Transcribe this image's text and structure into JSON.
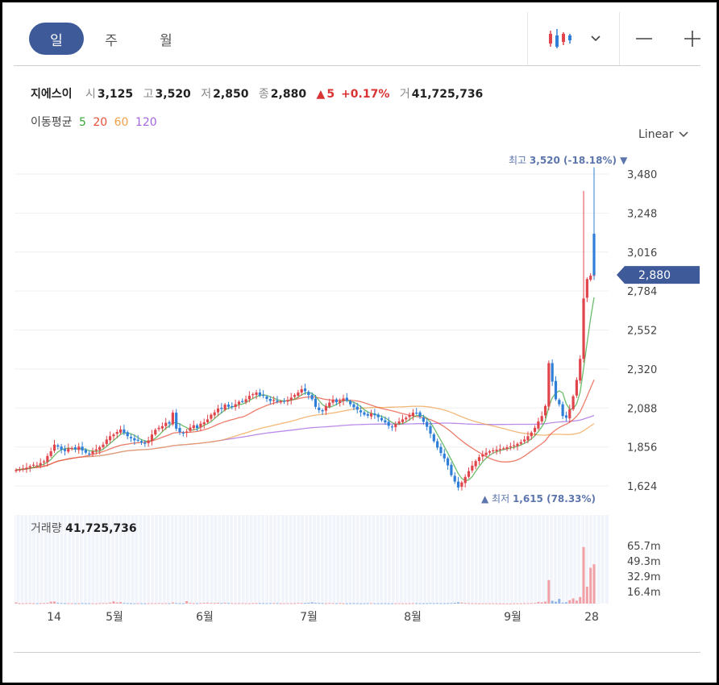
{
  "tabs": [
    {
      "label": "일",
      "active": true
    },
    {
      "label": "주",
      "active": false
    },
    {
      "label": "월",
      "active": false
    }
  ],
  "toolbar": {
    "chart_type_icon": "candlestick-icon",
    "dropdown_icon": "chevron-down-icon",
    "zoom_out": "—",
    "zoom_in": "+"
  },
  "quote": {
    "name": "지에스이",
    "open_label": "시",
    "open": "3,125",
    "high_label": "고",
    "high": "3,520",
    "low_label": "저",
    "low": "2,850",
    "close_label": "종",
    "close": "2,880",
    "change_arrow": "▲",
    "change": "5",
    "change_pct": "+0.17%",
    "volume_label": "거",
    "volume": "41,725,736"
  },
  "moving_average": {
    "label": "이동평균",
    "periods": [
      {
        "period": "5",
        "color": "#3aa63a"
      },
      {
        "period": "20",
        "color": "#e8503a"
      },
      {
        "period": "60",
        "color": "#f0a04b"
      },
      {
        "period": "120",
        "color": "#a366e0"
      }
    ]
  },
  "scale": {
    "label": "Linear"
  },
  "volume_panel": {
    "label": "거래량",
    "value": "41,725,736"
  },
  "colors": {
    "up": "#e0454b",
    "down": "#2f7fd8",
    "accent": "#3f5a99",
    "annotation": "#5c76ad"
  },
  "chart_data": {
    "type": "candlestick",
    "y_ticks": [
      "3,480",
      "3,248",
      "3,016",
      "2,784",
      "2,552",
      "2,320",
      "2,088",
      "1,856",
      "1,624"
    ],
    "ylim": [
      1580,
      3560
    ],
    "x_ticks": [
      "14",
      "5월",
      "6월",
      "7월",
      "8월",
      "9월",
      "28"
    ],
    "current_price_label": "2,880",
    "current_price": 2880,
    "high_annotation": {
      "label": "최고",
      "value": "3,520",
      "pct": "(-18.18%)",
      "arrow": "▼"
    },
    "low_annotation": {
      "label": "최저",
      "value": "1,615",
      "pct": "(78.33%)",
      "arrow": "▲"
    },
    "volume_ticks": [
      "65.7m",
      "49.3m",
      "32.9m",
      "16.4m"
    ],
    "volume_max": 82000000,
    "close_series": [
      1720,
      1722,
      1728,
      1733,
      1742,
      1750,
      1746,
      1760,
      1770,
      1802,
      1830,
      1870,
      1858,
      1840,
      1832,
      1848,
      1850,
      1842,
      1858,
      1835,
      1822,
      1815,
      1830,
      1842,
      1855,
      1870,
      1900,
      1920,
      1930,
      1945,
      1960,
      1940,
      1920,
      1908,
      1895,
      1895,
      1882,
      1875,
      1895,
      1930,
      1958,
      1970,
      1980,
      2000,
      1995,
      2060,
      1965,
      1945,
      1940,
      1948,
      1972,
      1985,
      1968,
      1995,
      2003,
      2020,
      2048,
      2062,
      2085,
      2082,
      2108,
      2095,
      2098,
      2110,
      2125,
      2128,
      2140,
      2160,
      2170,
      2180,
      2162,
      2160,
      2142,
      2130,
      2136,
      2125,
      2127,
      2130,
      2135,
      2150,
      2165,
      2180,
      2200,
      2188,
      2165,
      2140,
      2095,
      2075,
      2068,
      2100,
      2120,
      2135,
      2122,
      2130,
      2145,
      2132,
      2110,
      2092,
      2078,
      2062,
      2048,
      2042,
      2055,
      2045,
      2033,
      2015,
      2002,
      1982,
      1974,
      1992,
      2008,
      2020,
      2030,
      2045,
      2060,
      2058,
      2036,
      2006,
      1976,
      1935,
      1890,
      1852,
      1820,
      1788,
      1746,
      1688,
      1650,
      1615,
      1645,
      1678,
      1712,
      1745,
      1772,
      1795,
      1812,
      1822,
      1830,
      1836,
      1840,
      1844,
      1848,
      1854,
      1860,
      1866,
      1875,
      1885,
      1900,
      1920,
      1942,
      1970,
      2008,
      2040,
      2100,
      2355,
      2245,
      2140,
      2110,
      2040,
      2030,
      2080,
      2158,
      2255,
      2380,
      2740,
      2855,
      2875,
      2880
    ],
    "volume_series": [
      1.2,
      0.4,
      0.3,
      0.5,
      0.6,
      0.4,
      0.3,
      0.5,
      0.6,
      0.8,
      2.1,
      2.2,
      0.9,
      0.6,
      0.5,
      0.4,
      0.4,
      0.3,
      0.4,
      0.5,
      0.3,
      0.4,
      0.3,
      0.2,
      0.5,
      0.6,
      0.5,
      1.1,
      2.4,
      1.2,
      1.6,
      0.7,
      0.5,
      0.4,
      0.3,
      0.4,
      0.3,
      0.3,
      0.4,
      0.5,
      0.4,
      0.6,
      0.4,
      0.5,
      0.4,
      1.2,
      0.6,
      0.4,
      0.4,
      2.6,
      0.8,
      0.5,
      0.4,
      0.6,
      0.8,
      1.0,
      0.7,
      0.6,
      0.9,
      0.6,
      0.9,
      0.7,
      0.5,
      0.4,
      0.5,
      0.5,
      0.4,
      0.4,
      0.5,
      0.6,
      0.6,
      0.5,
      0.4,
      0.6,
      0.5,
      0.6,
      0.4,
      0.4,
      0.5,
      0.4,
      0.5,
      0.8,
      0.6,
      0.7,
      0.9,
      1.4,
      0.8,
      0.7,
      0.5,
      0.4,
      0.7,
      0.5,
      0.4,
      0.6,
      0.4,
      0.3,
      0.4,
      0.5,
      0.4,
      0.3,
      0.4,
      0.5,
      0.5,
      0.3,
      0.3,
      0.4,
      0.4,
      0.3,
      0.3,
      0.4,
      0.4,
      0.3,
      0.3,
      0.4,
      0.5,
      0.5,
      0.4,
      0.4,
      0.5,
      0.6,
      0.5,
      0.6,
      0.5,
      0.4,
      0.5,
      0.6,
      0.9,
      1.4,
      1.0,
      0.6,
      0.5,
      0.4,
      0.4,
      0.3,
      0.3,
      0.3,
      0.3,
      0.3,
      0.2,
      0.2,
      0.2,
      0.2,
      0.2,
      0.3,
      0.3,
      0.3,
      0.4,
      0.5,
      0.6,
      0.7,
      1.8,
      1.4,
      2.2,
      25.0,
      3.0,
      2.0,
      5.0,
      1.0,
      1.4,
      3.6,
      5.5,
      3.2,
      7.0,
      60.0,
      18.0,
      38.0,
      41.7
    ]
  }
}
